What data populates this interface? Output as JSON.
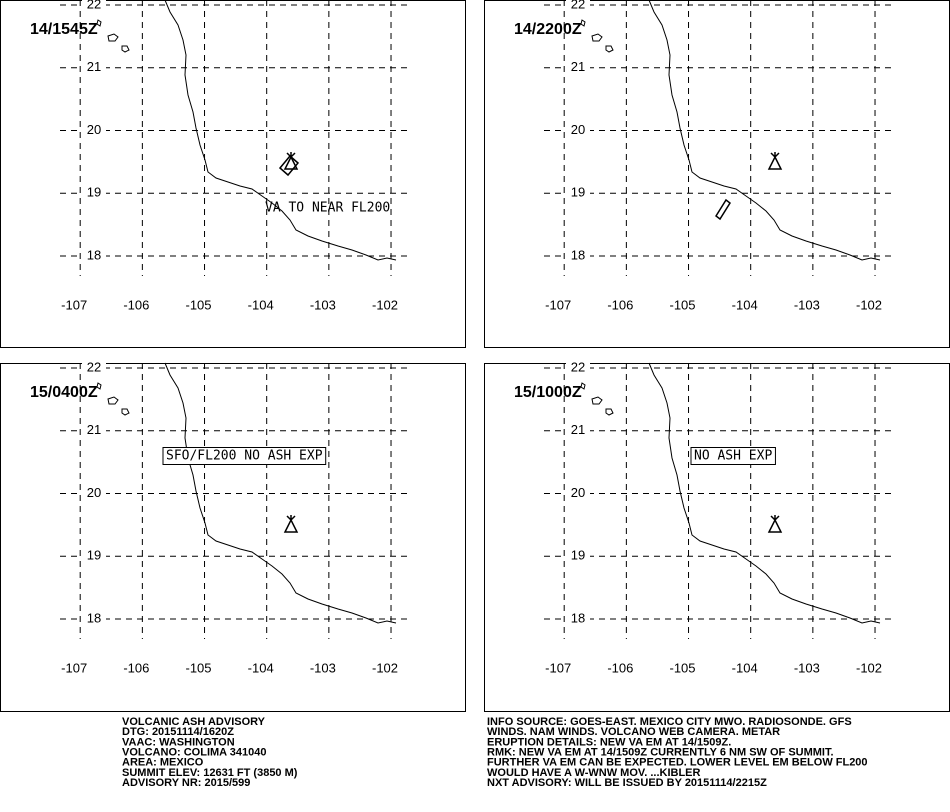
{
  "chart_data": {
    "type": "map",
    "xlim": [
      -108.29,
      -100.81
    ],
    "ylim": [
      16.55,
      22.08
    ],
    "xticks": [
      -107,
      -106,
      -105,
      -104,
      -103,
      -102
    ],
    "yticks": [
      18,
      19,
      20,
      21,
      22
    ],
    "grid": true,
    "panels": [
      {
        "label": "14/1545Z",
        "annotation": "VA TO NEAR FL200"
      },
      {
        "label": "14/2200Z"
      },
      {
        "label": "15/0400Z",
        "annotation": "SFO/FL200 NO ASH EXP"
      },
      {
        "label": "15/1000Z",
        "annotation": "NO ASH EXP"
      }
    ]
  },
  "advisory": {
    "left": [
      "VOLCANIC ASH ADVISORY",
      "DTG: 20151114/1620Z",
      "VAAC: WASHINGTON",
      "VOLCANO: COLIMA 341040",
      "AREA: MEXICO",
      "SUMMIT ELEV: 12631 FT (3850 M)",
      "ADVISORY NR: 2015/599"
    ],
    "right": [
      "INFO SOURCE: GOES-EAST. MEXICO CITY MWO. RADIOSONDE. GFS",
      "WINDS. NAM WINDS. VOLCANO WEB CAMERA. METAR",
      "ERUPTION DETAILS: NEW VA EM AT 14/1509Z.",
      "RMK: NEW VA EM AT 14/1509Z CURRENTLY 6 NM SW OF SUMMIT.",
      "FURTHER VA EM CAN BE EXPECTED. LOWER LEVEL EM BELOW FL200",
      "WOULD HAVE A W-WNW MOV. ...KIBLER",
      "NXT ADVISORY: WILL BE ISSUED BY 20151114/2215Z"
    ]
  }
}
